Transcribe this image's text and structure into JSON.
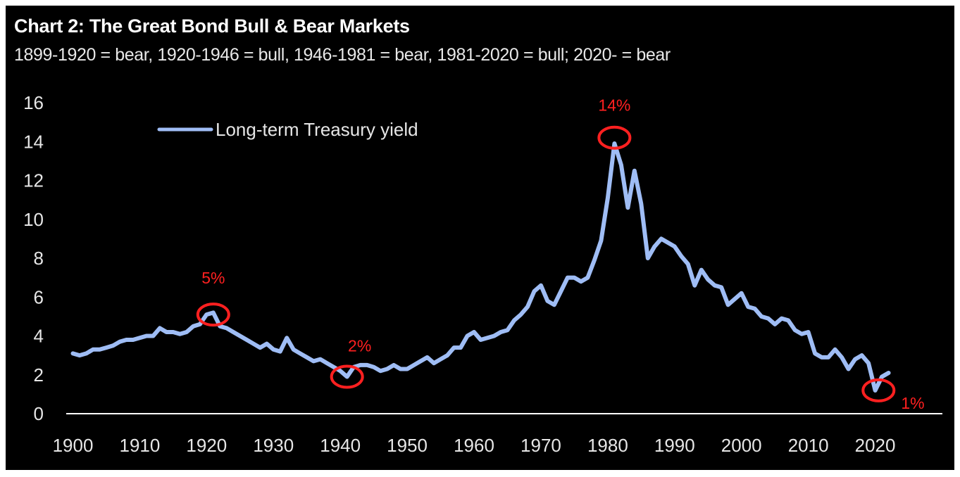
{
  "chart_data": {
    "type": "line",
    "title": "Chart 2: The Great Bond Bull & Bear Markets",
    "subtitle": "1899-1920 = bear, 1920-1946 = bull, 1946-1981 = bear, 1981-2020 = bull; 2020- = bear",
    "xlabel": "",
    "ylabel": "",
    "xlim": [
      1899,
      2029
    ],
    "ylim": [
      0,
      16
    ],
    "x_ticks": [
      "1900",
      "1910",
      "1920",
      "1930",
      "1940",
      "1950",
      "1960",
      "1970",
      "1980",
      "1990",
      "2000",
      "2010",
      "2020"
    ],
    "y_ticks": [
      "0",
      "2",
      "4",
      "6",
      "8",
      "10",
      "12",
      "14",
      "16"
    ],
    "grid": false,
    "legend_position": "top-left",
    "series": [
      {
        "name": "Long-term Treasury yield",
        "color": "#9fbdf5",
        "x": [
          1900,
          1901,
          1902,
          1903,
          1904,
          1905,
          1906,
          1907,
          1908,
          1909,
          1910,
          1911,
          1912,
          1913,
          1914,
          1915,
          1916,
          1917,
          1918,
          1919,
          1920,
          1921,
          1922,
          1923,
          1924,
          1925,
          1926,
          1927,
          1928,
          1929,
          1930,
          1931,
          1932,
          1933,
          1934,
          1935,
          1936,
          1937,
          1938,
          1939,
          1940,
          1941,
          1942,
          1943,
          1944,
          1945,
          1946,
          1947,
          1948,
          1949,
          1950,
          1951,
          1952,
          1953,
          1954,
          1955,
          1956,
          1957,
          1958,
          1959,
          1960,
          1961,
          1962,
          1963,
          1964,
          1965,
          1966,
          1967,
          1968,
          1969,
          1970,
          1971,
          1972,
          1973,
          1974,
          1975,
          1976,
          1977,
          1978,
          1979,
          1980,
          1981,
          1982,
          1983,
          1984,
          1985,
          1986,
          1987,
          1988,
          1989,
          1990,
          1991,
          1992,
          1993,
          1994,
          1995,
          1996,
          1997,
          1998,
          1999,
          2000,
          2001,
          2002,
          2003,
          2004,
          2005,
          2006,
          2007,
          2008,
          2009,
          2010,
          2011,
          2012,
          2013,
          2014,
          2015,
          2016,
          2017,
          2018,
          2019,
          2020,
          2021,
          2022
        ],
        "values": [
          3.1,
          3.0,
          3.1,
          3.3,
          3.3,
          3.4,
          3.5,
          3.7,
          3.8,
          3.8,
          3.9,
          4.0,
          4.0,
          4.4,
          4.2,
          4.2,
          4.1,
          4.2,
          4.5,
          4.6,
          5.1,
          5.2,
          4.5,
          4.4,
          4.2,
          4.0,
          3.8,
          3.6,
          3.4,
          3.6,
          3.3,
          3.2,
          3.9,
          3.3,
          3.1,
          2.9,
          2.7,
          2.8,
          2.6,
          2.4,
          2.2,
          1.9,
          2.4,
          2.5,
          2.5,
          2.4,
          2.2,
          2.3,
          2.5,
          2.3,
          2.3,
          2.5,
          2.7,
          2.9,
          2.6,
          2.8,
          3.0,
          3.4,
          3.4,
          4.0,
          4.2,
          3.8,
          3.9,
          4.0,
          4.2,
          4.3,
          4.8,
          5.1,
          5.5,
          6.3,
          6.6,
          5.8,
          5.6,
          6.3,
          7.0,
          7.0,
          6.8,
          7.0,
          7.9,
          8.9,
          11.1,
          13.9,
          12.8,
          10.6,
          12.5,
          10.8,
          8.0,
          8.6,
          9.0,
          8.8,
          8.6,
          8.1,
          7.7,
          6.6,
          7.4,
          6.9,
          6.6,
          6.5,
          5.6,
          5.9,
          6.2,
          5.5,
          5.4,
          5.0,
          4.9,
          4.6,
          4.9,
          4.8,
          4.3,
          4.1,
          4.2,
          3.1,
          2.9,
          2.9,
          3.3,
          2.9,
          2.3,
          2.8,
          3.0,
          2.6,
          1.2,
          1.9,
          2.1
        ]
      }
    ],
    "annotations": [
      {
        "label": "5%",
        "x": 1921,
        "y": 5.1
      },
      {
        "label": "2%",
        "x": 1941,
        "y": 1.9
      },
      {
        "label": "14%",
        "x": 1981,
        "y": 14.2
      },
      {
        "label": "1%",
        "x": 2020.5,
        "y": 1.2
      }
    ],
    "annotation_color": "#ff2020"
  }
}
